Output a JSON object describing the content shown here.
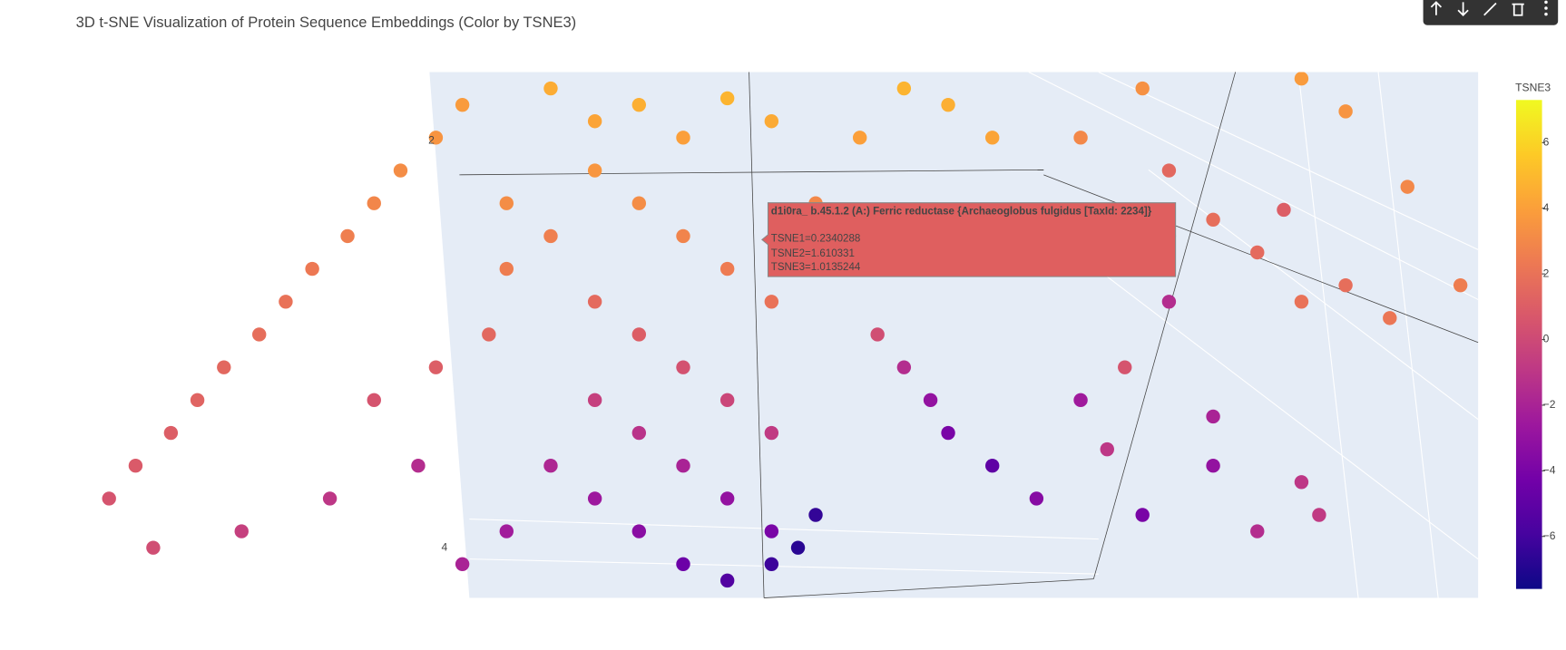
{
  "chart_data": {
    "type": "scatter3d",
    "title": "3D t-SNE Visualization of Protein Sequence Embeddings (Color by TSNE3)",
    "colorbar_title": "TSNE3",
    "colorscale": [
      "#0d0887",
      "#46039f",
      "#7201a8",
      "#9c179e",
      "#bd3786",
      "#d8576b",
      "#ed7953",
      "#fb9f3a",
      "#fdca26",
      "#f0f921"
    ],
    "xlim": [
      -8,
      8
    ],
    "ylim": [
      -8,
      8
    ],
    "zlim": [
      -7.6,
      7.3
    ],
    "zticks": [
      6,
      4,
      2,
      0,
      {
        "value": -2,
        "label": "−2"
      },
      {
        "value": -4,
        "label": "−4"
      },
      {
        "value": -6,
        "label": "−6"
      }
    ],
    "scene_tick_labels": [
      2,
      4
    ],
    "hover": {
      "title": "d1i0ra_ b.45.1.2 (A:) Ferric reductase {Archaeoglobus fulgidus [TaxId: 2234]}",
      "lines": [
        "TSNE1=0.2340288",
        "TSNE2=1.610331",
        "TSNE3=1.0135244"
      ]
    },
    "x": [
      -7.5,
      -7.2,
      -6.8,
      -6.5,
      -6.2,
      -5.8,
      -5.5,
      -5.2,
      -4.8,
      -4.5,
      -4.2,
      -3.8,
      -3.5,
      -7,
      -6,
      -5,
      -4,
      -4.5,
      -3.8,
      -3.2,
      -3,
      -3,
      -2.5,
      -2,
      -1.5,
      -1,
      -0.5,
      0,
      -2,
      -1.5,
      -1,
      -0.5,
      0,
      -2.5,
      -2,
      -1.5,
      -1,
      -0.5,
      0,
      -2,
      -1.5,
      -1,
      -0.5,
      0,
      -2.5,
      -2,
      -1.5,
      -1,
      -0.5,
      0,
      0.3,
      0.5,
      -3,
      -3.5,
      0.5,
      1,
      1.5,
      2,
      2.5,
      1,
      1.2,
      1.5,
      1.8,
      2,
      2.5,
      3,
      3.5,
      3.8,
      4,
      4.5,
      5,
      5,
      5.5,
      6,
      6.2,
      4.2,
      4.5,
      5,
      5.5,
      6,
      6.5,
      7,
      3.5,
      4.2,
      6,
      6.5,
      7.2,
      7.8,
      4.5,
      5.8
    ],
    "y": [
      -5,
      -4,
      -3,
      -2,
      -1,
      0,
      1,
      2,
      3,
      4,
      5,
      6,
      7,
      -6.5,
      -6,
      -5,
      -4,
      -2,
      -1,
      0,
      2,
      4,
      7.5,
      6.5,
      7,
      6,
      7.2,
      6.5,
      5,
      4,
      3,
      2,
      1,
      3,
      1,
      0,
      -1,
      -2,
      -3,
      -2,
      -3,
      -4,
      -5,
      -6,
      -4,
      -5,
      -6,
      -7,
      -7.5,
      -7,
      -6.5,
      -5.5,
      -6,
      -7,
      4,
      6,
      7.5,
      7,
      6,
      2,
      0,
      -1,
      -2,
      -3,
      -4,
      -5,
      -2,
      -3.5,
      -1,
      1,
      -2.5,
      -4,
      -6,
      -4.5,
      -5.5,
      -5.5,
      3,
      3.5,
      2.5,
      1,
      1.5,
      0.5,
      6,
      7.5,
      7.8,
      6.8,
      4.5,
      1.5,
      5,
      3.8
    ],
    "z": [
      0.5,
      0.8,
      1,
      1.3,
      1.5,
      1.8,
      2,
      2.3,
      2.6,
      2.9,
      3.2,
      3.5,
      3.8,
      0.2,
      -0.5,
      -1,
      -1.5,
      0.5,
      1,
      1.5,
      2.5,
      3.2,
      4.5,
      4.2,
      4.6,
      4,
      4.8,
      4.4,
      3.6,
      3.2,
      2.8,
      2.4,
      2,
      2.6,
      1.6,
      1,
      0.4,
      -0.2,
      -0.8,
      -0.5,
      -1.2,
      -2,
      -3,
      -4,
      -1.8,
      -2.6,
      -3.4,
      -4.5,
      -5.5,
      -6.2,
      -6.8,
      -6.5,
      -2.4,
      -2,
      3,
      4,
      4.8,
      4.6,
      4.2,
      1.5,
      0.2,
      -1.5,
      -3,
      -4,
      -5,
      -3.5,
      -2.5,
      -1,
      0.5,
      -1.5,
      -2,
      -3,
      -1.5,
      -1,
      -0.8,
      -4,
      1.5,
      1.8,
      1.6,
      2,
      1.8,
      2.2,
      3,
      3.4,
      3.8,
      3.5,
      3,
      2.5,
      1.5,
      1
    ]
  }
}
